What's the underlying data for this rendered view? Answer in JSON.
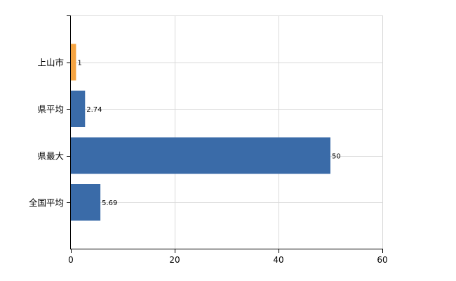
{
  "chart_data": {
    "type": "bar",
    "orientation": "horizontal",
    "categories": [
      "上山市",
      "県平均",
      "県最大",
      "全国平均"
    ],
    "values": [
      1,
      2.74,
      50,
      5.69
    ],
    "value_labels": [
      "1",
      "2.74",
      "50",
      "5.69"
    ],
    "xlim": [
      0,
      60
    ],
    "x_ticks": [
      0,
      20,
      40,
      60
    ],
    "x_tick_labels": [
      "0",
      "20",
      "40",
      "60"
    ],
    "title": "",
    "xlabel": "",
    "ylabel": "",
    "grid": true,
    "legend": "none",
    "colors": {
      "highlight": "#f5a442",
      "default": "#3a6ba8",
      "grid": "#d9d9d9",
      "axis": "#000000"
    },
    "highlight_index": 0
  }
}
